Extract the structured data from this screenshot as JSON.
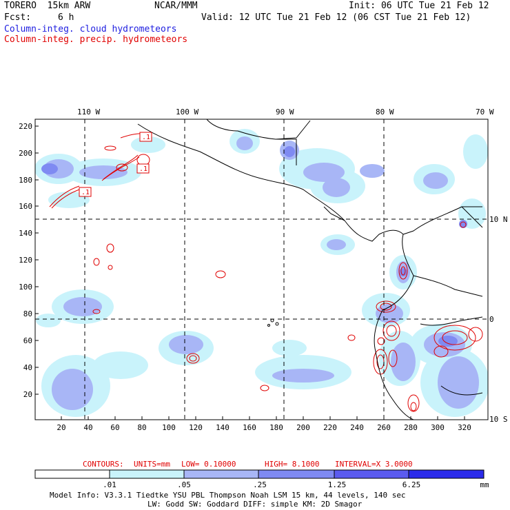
{
  "header": {
    "model": "TORERO  15km ARW",
    "center": "NCAR/MMM",
    "init": "Init: 06 UTC Tue 21 Feb 12",
    "fcst_label": "Fcst:",
    "fcst_value": "6 h",
    "valid": "Valid: 12 UTC Tue 21 Feb 12 (06 CST Tue 21 Feb 12)",
    "field1": "Column-integ. cloud hydrometeors",
    "field2": "Column-integ. precip. hydrometeors"
  },
  "colors": {
    "field1": "#2020e0",
    "field2": "#e00000",
    "cloud_shades": [
      "#ffffff",
      "#c9f3fb",
      "#a8b6f6",
      "#7f8af2",
      "#5b5bef",
      "#2b2bea"
    ]
  },
  "map": {
    "top_lon_labels": [
      "110 W",
      "100 W",
      "90 W",
      "80 W",
      "70 W"
    ],
    "right_lat_labels": [
      "10 N",
      "0",
      "10 S"
    ],
    "left_grid_labels": [
      "220",
      "200",
      "180",
      "160",
      "140",
      "120",
      "100",
      "80",
      "60",
      "40",
      "20"
    ],
    "bottom_grid_labels": [
      "20",
      "40",
      "60",
      "80",
      "100",
      "120",
      "140",
      "160",
      "180",
      "200",
      "220",
      "240",
      "260",
      "280",
      "300",
      "320"
    ],
    "contour_labels": [
      ".1",
      ".1",
      ".1"
    ]
  },
  "contours": {
    "label": "CONTOURS:",
    "units": "UNITS=mm",
    "low": "LOW= 0.10000",
    "high": "HIGH=  8.1000",
    "interval": "INTERVAL=X  3.0000"
  },
  "colorbar": {
    "thresholds": [
      ".01",
      ".05",
      ".25",
      "1.25",
      "6.25"
    ],
    "unit": "mm"
  },
  "footer": {
    "line1": "Model Info: V3.3.1   Tiedtke YSU PBL  Thompson    Noah LSM  15 km,   44 levels,  140 sec",
    "line2": "LW: Godd SW: Goddard DIFF: simple KM: 2D Smagor"
  }
}
